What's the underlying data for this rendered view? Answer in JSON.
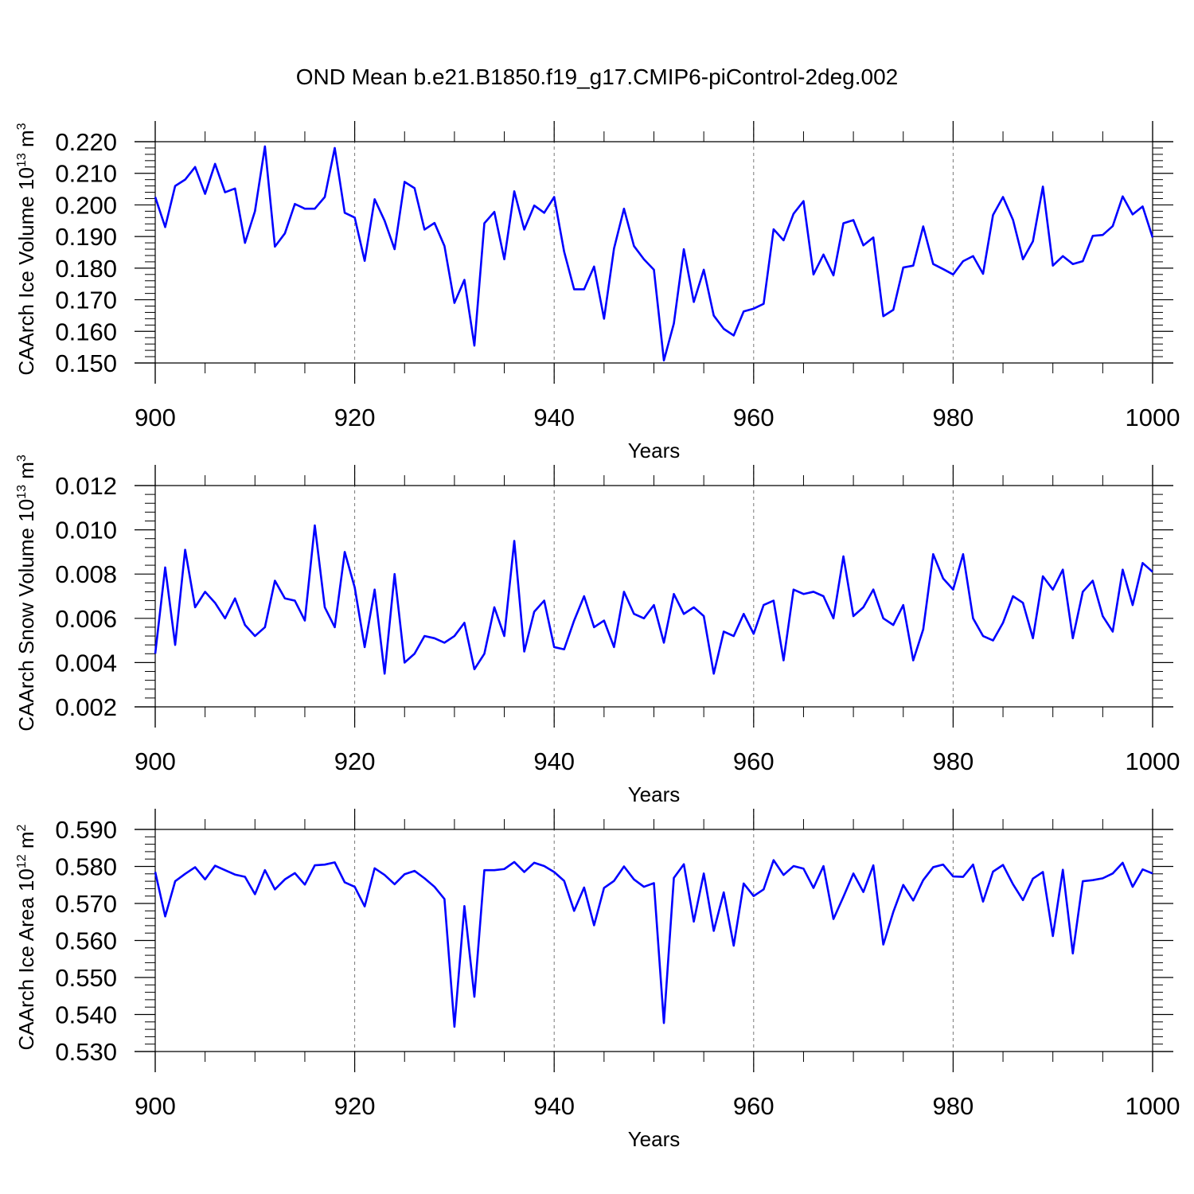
{
  "figure": {
    "title": "OND Mean b.e21.B1850.f19_g17.CMIP6-piControl-2deg.002"
  },
  "chart_data": [
    {
      "type": "line",
      "xlabel": "Years",
      "ylabel": {
        "text": "CAArch Ice Volume 10",
        "exp": "13",
        "unit": " m",
        "unit_exp": "3"
      },
      "xlim": [
        900,
        1000
      ],
      "ylim": [
        0.15,
        0.22
      ],
      "x_ticks": [
        900,
        920,
        940,
        960,
        980,
        1000
      ],
      "x_tick_labels": [
        "900",
        "920",
        "940",
        "960",
        "980",
        "1000"
      ],
      "y_ticks": [
        0.15,
        0.16,
        0.17,
        0.18,
        0.19,
        0.2,
        0.21,
        0.22
      ],
      "y_tick_labels": [
        "0.150",
        "0.160",
        "0.170",
        "0.180",
        "0.190",
        "0.200",
        "0.210",
        "0.220"
      ],
      "grid": "vertical dashed at major x ticks",
      "x_start": 900,
      "series": [
        {
          "color": "#0000ff",
          "values": [
            0.2025,
            0.193,
            0.206,
            0.208,
            0.212,
            0.2035,
            0.213,
            0.204,
            0.2052,
            0.188,
            0.198,
            0.2185,
            0.1868,
            0.191,
            0.2003,
            0.1988,
            0.1988,
            0.2025,
            0.218,
            0.1975,
            0.196,
            0.1823,
            0.2018,
            0.195,
            0.186,
            0.2073,
            0.2053,
            0.1922,
            0.1943,
            0.187,
            0.169,
            0.1763,
            0.1555,
            0.1942,
            0.1978,
            0.1828,
            0.2043,
            0.1922,
            0.1998,
            0.1975,
            0.2025,
            0.1852,
            0.1733,
            0.1733,
            0.1805,
            0.164,
            0.1862,
            0.1988,
            0.187,
            0.1828,
            0.1795,
            0.1508,
            0.1625,
            0.186,
            0.1693,
            0.1795,
            0.165,
            0.1608,
            0.1587,
            0.1663,
            0.1672,
            0.1687,
            0.1923,
            0.1888,
            0.1972,
            0.2012,
            0.178,
            0.1843,
            0.1777,
            0.1942,
            0.1952,
            0.1872,
            0.1897,
            0.1648,
            0.1668,
            0.1802,
            0.1808,
            0.1932,
            0.1813,
            0.1797,
            0.178,
            0.1822,
            0.1838,
            0.1782,
            0.1968,
            0.2025,
            0.1953,
            0.1828,
            0.1885,
            0.2058,
            0.1808,
            0.1838,
            0.1813,
            0.1822,
            0.1902,
            0.1905,
            0.1933,
            0.2027,
            0.197,
            0.1995,
            0.1897
          ]
        }
      ]
    },
    {
      "type": "line",
      "xlabel": "Years",
      "ylabel": {
        "text": "CAArch Snow Volume 10",
        "exp": "13",
        "unit": " m",
        "unit_exp": "3"
      },
      "xlim": [
        900,
        1000
      ],
      "ylim": [
        0.002,
        0.012
      ],
      "x_ticks": [
        900,
        920,
        940,
        960,
        980,
        1000
      ],
      "x_tick_labels": [
        "900",
        "920",
        "940",
        "960",
        "980",
        "1000"
      ],
      "y_ticks": [
        0.002,
        0.004,
        0.006,
        0.008,
        0.01,
        0.012
      ],
      "y_tick_labels": [
        "0.002",
        "0.004",
        "0.006",
        "0.008",
        "0.010",
        "0.012"
      ],
      "grid": "vertical dashed at major x ticks",
      "x_start": 900,
      "series": [
        {
          "color": "#0000ff",
          "values": [
            0.0044,
            0.0083,
            0.0048,
            0.0091,
            0.0065,
            0.0072,
            0.0067,
            0.006,
            0.0069,
            0.0057,
            0.0052,
            0.0056,
            0.0077,
            0.0069,
            0.0068,
            0.0059,
            0.0102,
            0.0065,
            0.0056,
            0.009,
            0.0074,
            0.0047,
            0.0073,
            0.0035,
            0.008,
            0.004,
            0.0044,
            0.0052,
            0.0051,
            0.0049,
            0.0052,
            0.0058,
            0.0037,
            0.0044,
            0.0065,
            0.0052,
            0.0095,
            0.0045,
            0.0063,
            0.0068,
            0.0047,
            0.0046,
            0.0059,
            0.007,
            0.0056,
            0.0059,
            0.0047,
            0.0072,
            0.0062,
            0.006,
            0.0066,
            0.0049,
            0.0071,
            0.0062,
            0.0065,
            0.0061,
            0.0035,
            0.0054,
            0.0052,
            0.0062,
            0.0053,
            0.0066,
            0.0068,
            0.0041,
            0.0073,
            0.0071,
            0.0072,
            0.007,
            0.006,
            0.0088,
            0.0061,
            0.0065,
            0.0073,
            0.006,
            0.0057,
            0.0066,
            0.0041,
            0.0055,
            0.0089,
            0.0078,
            0.0073,
            0.0089,
            0.006,
            0.0052,
            0.005,
            0.0058,
            0.007,
            0.0067,
            0.0051,
            0.0079,
            0.0073,
            0.0082,
            0.0051,
            0.0072,
            0.0077,
            0.0061,
            0.0054,
            0.0082,
            0.0066,
            0.0085,
            0.0081
          ]
        }
      ]
    },
    {
      "type": "line",
      "xlabel": "Years",
      "ylabel": {
        "text": "CAArch Ice Area 10",
        "exp": "12",
        "unit": " m",
        "unit_exp": "2"
      },
      "xlim": [
        900,
        1000
      ],
      "ylim": [
        0.53,
        0.59
      ],
      "x_ticks": [
        900,
        920,
        940,
        960,
        980,
        1000
      ],
      "x_tick_labels": [
        "900",
        "920",
        "940",
        "960",
        "980",
        "1000"
      ],
      "y_ticks": [
        0.53,
        0.54,
        0.55,
        0.56,
        0.57,
        0.58,
        0.59
      ],
      "y_tick_labels": [
        "0.530",
        "0.540",
        "0.550",
        "0.560",
        "0.570",
        "0.580",
        "0.590"
      ],
      "grid": "vertical dashed at major x ticks",
      "x_start": 900,
      "series": [
        {
          "color": "#0000ff",
          "values": [
            0.5785,
            0.5665,
            0.576,
            0.578,
            0.5798,
            0.5765,
            0.5802,
            0.579,
            0.5778,
            0.5772,
            0.5725,
            0.579,
            0.5738,
            0.5765,
            0.5782,
            0.5751,
            0.5803,
            0.5805,
            0.5811,
            0.5757,
            0.5745,
            0.5692,
            0.5795,
            0.5777,
            0.5752,
            0.5779,
            0.5788,
            0.5768,
            0.5745,
            0.5712,
            0.5367,
            0.5693,
            0.5448,
            0.579,
            0.579,
            0.5793,
            0.5812,
            0.5785,
            0.581,
            0.5801,
            0.5785,
            0.5761,
            0.568,
            0.5743,
            0.5641,
            0.5742,
            0.5761,
            0.58,
            0.5765,
            0.5745,
            0.5755,
            0.5377,
            0.5769,
            0.5806,
            0.5651,
            0.5781,
            0.5626,
            0.573,
            0.5586,
            0.5754,
            0.572,
            0.5738,
            0.5817,
            0.5777,
            0.5801,
            0.5794,
            0.5742,
            0.5801,
            0.5658,
            0.5718,
            0.5781,
            0.5731,
            0.5803,
            0.5589,
            0.5677,
            0.575,
            0.5708,
            0.5763,
            0.5798,
            0.5805,
            0.5773,
            0.5772,
            0.5805,
            0.5705,
            0.5786,
            0.5804,
            0.5752,
            0.5709,
            0.5767,
            0.5785,
            0.5612,
            0.5791,
            0.5565,
            0.576,
            0.5763,
            0.5768,
            0.5781,
            0.581,
            0.5745,
            0.5792,
            0.5781
          ]
        }
      ]
    }
  ]
}
